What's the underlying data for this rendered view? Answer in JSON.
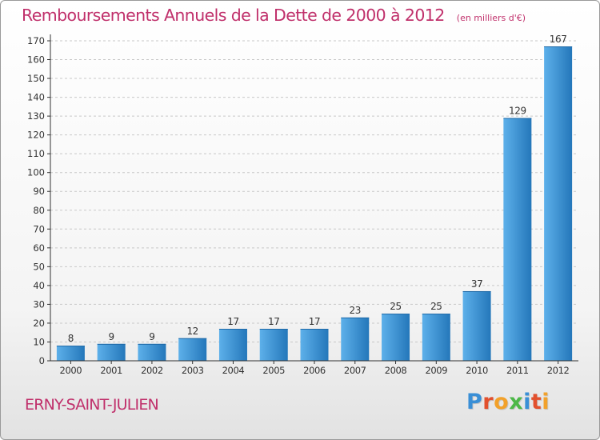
{
  "header": {
    "title": "Remboursements Annuels de la Dette de 2000 à 2012",
    "subtitle": "(en milliers d'€)"
  },
  "footer": {
    "place": "ERNY-SAINT-JULIEN",
    "logo_text": "Proxiti",
    "logo_colors": [
      "#3a8fd6",
      "#e2502d",
      "#f2a12a",
      "#4db848",
      "#3a8fd6",
      "#e2502d",
      "#f2a12a"
    ]
  },
  "colors": {
    "bar_light": "#5db0ea",
    "bar_dark": "#2477ba",
    "grid": "#c8c8c8",
    "axis": "#333333",
    "text": "#333333"
  },
  "chart_data": {
    "type": "bar",
    "categories": [
      "2000",
      "2001",
      "2002",
      "2003",
      "2004",
      "2005",
      "2006",
      "2007",
      "2008",
      "2009",
      "2010",
      "2011",
      "2012"
    ],
    "values": [
      8,
      9,
      9,
      12,
      17,
      17,
      17,
      23,
      25,
      25,
      37,
      129,
      167
    ],
    "data_labels": [
      "8",
      "9",
      "9",
      "12",
      "17",
      "17",
      "17",
      "23",
      "25",
      "25",
      "37",
      "129",
      "167"
    ],
    "title": "Remboursements Annuels de la Dette de 2000 à 2012",
    "subtitle": "(en milliers d'€)",
    "xlabel": "",
    "ylabel": "",
    "ylim": [
      0,
      170
    ],
    "yticks": [
      0,
      10,
      20,
      30,
      40,
      50,
      60,
      70,
      80,
      90,
      100,
      110,
      120,
      130,
      140,
      150,
      160,
      170
    ],
    "grid": true,
    "legend": "none"
  }
}
